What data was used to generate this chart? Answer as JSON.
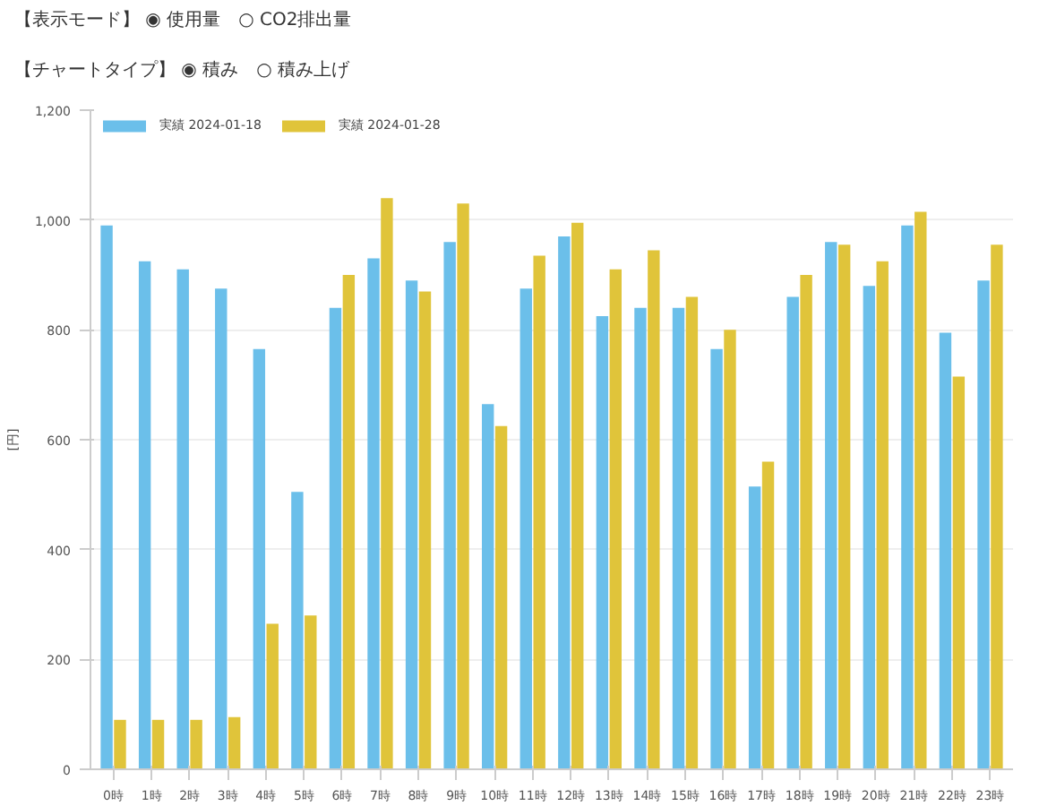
{
  "chart_data": {
    "type": "bar",
    "annotations": [
      "【表示モード】 ◉ 使用量　○ CO2排出量",
      "【チャートタイプ】 ◉ 積み　○ 積み上げ"
    ],
    "ylabel": "[円]",
    "categories": [
      "0時",
      "1時",
      "2時",
      "3時",
      "4時",
      "5時",
      "6時",
      "7時",
      "8時",
      "9時",
      "10時",
      "11時",
      "12時",
      "13時",
      "14時",
      "15時",
      "16時",
      "17時",
      "18時",
      "19時",
      "20時",
      "21時",
      "22時",
      "23時"
    ],
    "series": [
      {
        "name": "実績 2024-01-18",
        "color": "#6bbfea",
        "values": [
          990,
          925,
          910,
          875,
          765,
          505,
          840,
          930,
          890,
          960,
          665,
          875,
          970,
          825,
          840,
          840,
          765,
          515,
          860,
          960,
          880,
          990,
          795,
          890
        ]
      },
      {
        "name": "実績 2024-01-28",
        "color": "#e0c43a",
        "values": [
          90,
          90,
          90,
          95,
          265,
          280,
          900,
          1040,
          870,
          1030,
          625,
          935,
          995,
          910,
          945,
          860,
          800,
          560,
          900,
          955,
          925,
          1015,
          715,
          955
        ]
      }
    ],
    "ylim": [
      0,
      1200
    ],
    "yticks": [
      0,
      200,
      400,
      600,
      800,
      {
        "value": 1000,
        "label": "1,000"
      },
      {
        "value": 1200,
        "label": "1,200"
      }
    ],
    "grid": "y",
    "legend": "top left"
  }
}
